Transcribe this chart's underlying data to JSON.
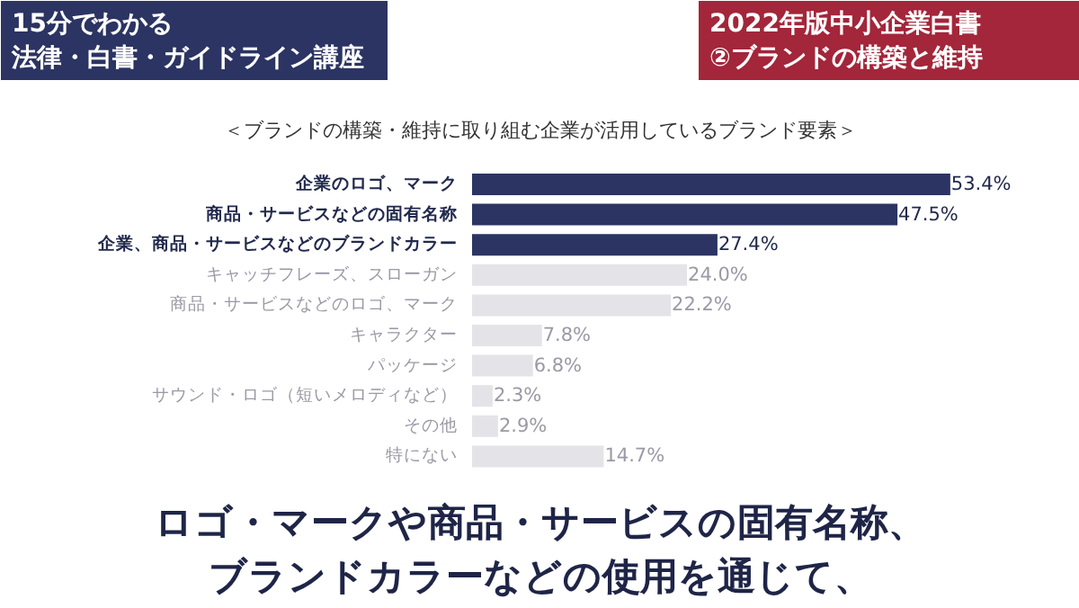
{
  "chart_data": {
    "type": "bar",
    "orientation": "horizontal",
    "title": "＜ブランドの構築・維持に取り組む企業が活用しているブランド要素＞",
    "categories": [
      "企業のロゴ、マーク",
      "商品・サービスなどの固有名称",
      "企業、商品・サービスなどのブランドカラー",
      "キャッチフレーズ、スローガン",
      "商品・サービスなどのロゴ、マーク",
      "キャラクター",
      "パッケージ",
      "サウンド・ロゴ（短いメロディなど）",
      "その他",
      "特にない"
    ],
    "values": [
      53.4,
      47.5,
      27.4,
      24.0,
      22.2,
      7.8,
      6.8,
      2.3,
      2.9,
      14.7
    ],
    "value_labels": [
      "53.4%",
      "47.5%",
      "27.4%",
      "24.0%",
      "22.2%",
      "7.8%",
      "6.8%",
      "2.3%",
      "2.9%",
      "14.7%"
    ],
    "colors": [
      "#2b3462",
      "#2b3462",
      "#2b3462",
      "#e4e4e8",
      "#e4e4e8",
      "#e4e4e8",
      "#e4e4e8",
      "#e4e4e8",
      "#e4e4e8",
      "#e4e4e8"
    ],
    "annotations": [
      "15分でわかる",
      "法律・白書・ガイドライン講座",
      "2022年版中小企業白書",
      "②ブランドの構築と維持",
      "ロゴ・マークや商品・サービスの固有名称、",
      "ブランドカラーなどの使用を通じて、"
    ]
  }
}
